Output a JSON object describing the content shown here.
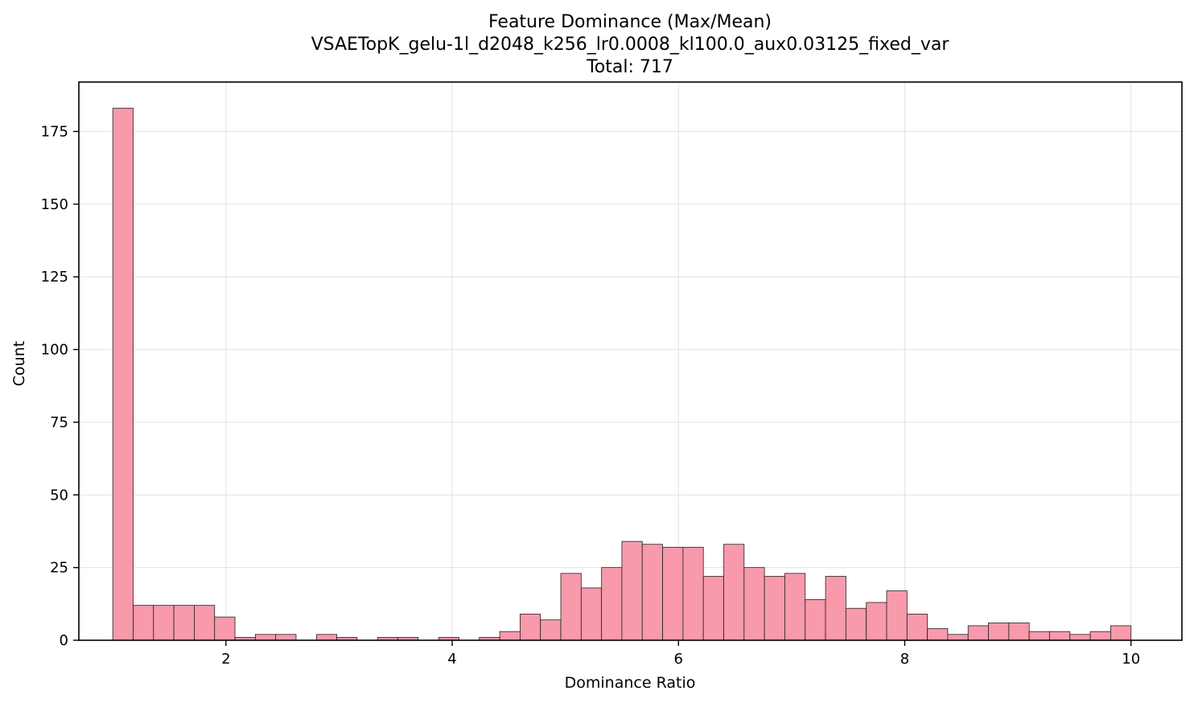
{
  "chart_data": {
    "type": "bar",
    "title": "Feature Dominance (Max/Mean)",
    "subtitle": "VSAETopK_gelu-1l_d2048_k256_lr0.0008_kl100.0_aux0.03125_fixed_var",
    "total_label": "Total: 717",
    "xlabel": "Dominance Ratio",
    "ylabel": "Count",
    "xlim": [
      0.7,
      10.45
    ],
    "ylim": [
      0,
      192
    ],
    "xticks": [
      2,
      4,
      6,
      8,
      10
    ],
    "yticks": [
      0,
      25,
      50,
      75,
      100,
      125,
      150,
      175
    ],
    "grid": true,
    "bin_start": 1.0,
    "bin_width": 0.18,
    "counts": [
      183,
      12,
      12,
      12,
      12,
      8,
      1,
      2,
      2,
      0,
      2,
      1,
      0,
      1,
      1,
      0,
      1,
      0,
      1,
      3,
      9,
      7,
      23,
      18,
      25,
      34,
      33,
      32,
      32,
      22,
      33,
      25,
      22,
      23,
      14,
      22,
      11,
      13,
      17,
      9,
      4,
      2,
      5,
      6,
      6,
      3,
      3,
      2,
      3,
      5
    ],
    "colors": {
      "bar_fill": "#f899ac",
      "bar_edge": "#222222"
    }
  }
}
